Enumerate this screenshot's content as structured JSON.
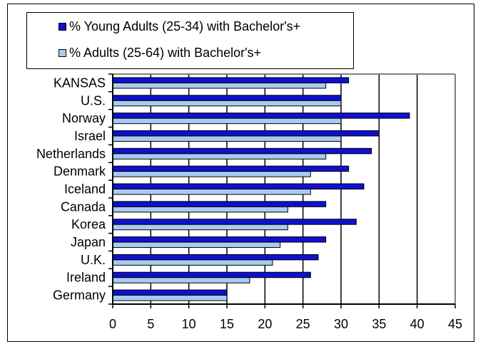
{
  "chart_data": {
    "type": "bar",
    "orientation": "horizontal",
    "categories": [
      "KANSAS",
      "U.S.",
      "Norway",
      "Israel",
      "Netherlands",
      "Denmark",
      "Iceland",
      "Canada",
      "Korea",
      "Japan",
      "U.K.",
      "Ireland",
      "Germany"
    ],
    "series": [
      {
        "name": "% Young Adults (25-34) with Bachelor's+",
        "color": "#1010d0",
        "values": [
          31,
          30,
          39,
          35,
          34,
          31,
          33,
          28,
          32,
          28,
          27,
          26,
          15
        ]
      },
      {
        "name": "% Adults (25-64) with Bachelor's+",
        "color": "#a8ccf0",
        "values": [
          28,
          30,
          30,
          30,
          28,
          26,
          26,
          23,
          23,
          22,
          21,
          18,
          15
        ]
      }
    ],
    "xlim": [
      0,
      45
    ],
    "xticks": [
      "0",
      "5",
      "10",
      "15",
      "20",
      "25",
      "30",
      "35",
      "40",
      "45"
    ],
    "grid": true,
    "legend_position": "top"
  }
}
